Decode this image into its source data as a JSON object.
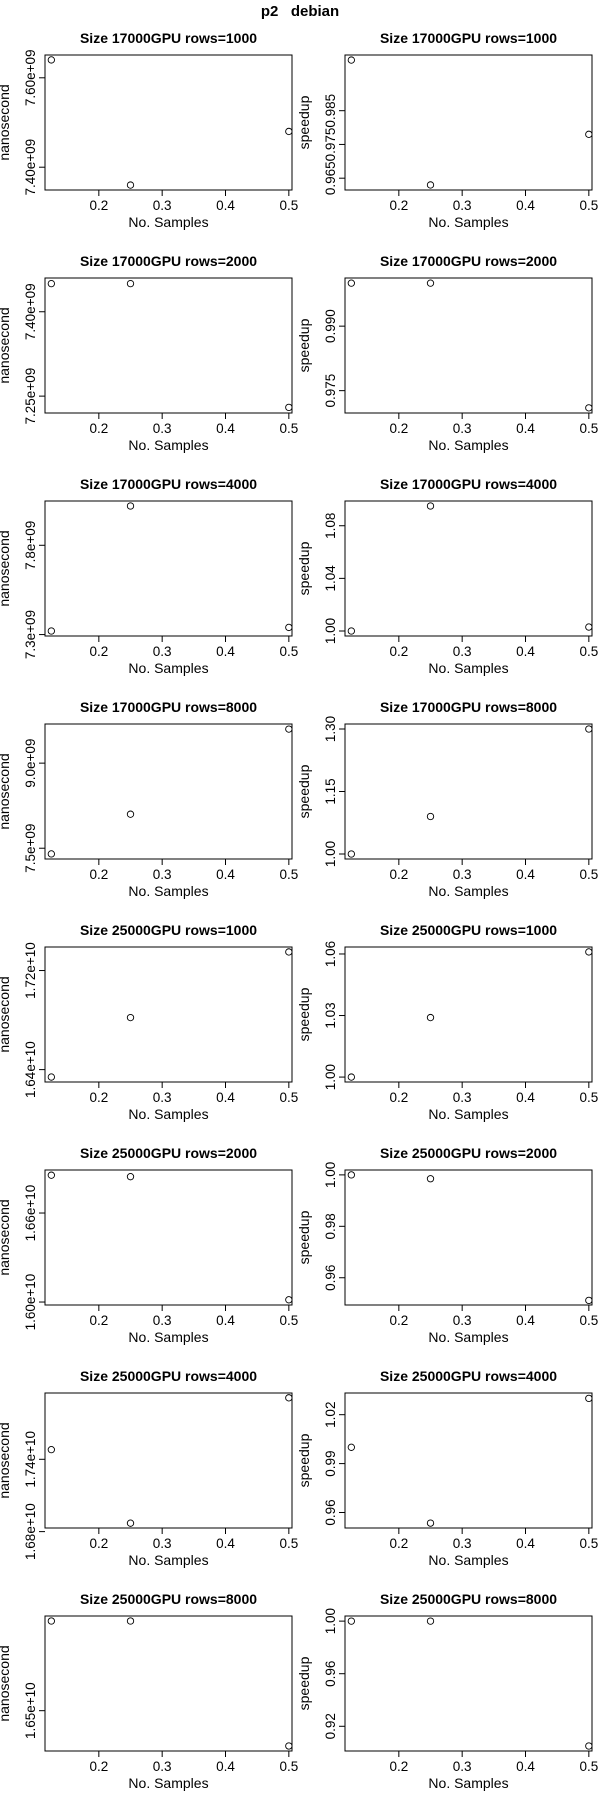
{
  "figure": {
    "title": "p2   debian"
  },
  "chart_data": [
    {
      "type": "scatter",
      "title": "Size 17000GPU rows=1000",
      "xlabel": "No. Samples",
      "ylabel": "nanosecond",
      "x": [
        0.125,
        0.25,
        0.5
      ],
      "y": [
        7640000000.0,
        7360000000.0,
        7480000000.0
      ],
      "xticks": [
        0.2,
        0.3,
        0.4,
        0.5
      ],
      "xtick_labels": [
        "0.2",
        "0.3",
        "0.4",
        "0.5"
      ],
      "yticks": [
        7400000000.0,
        7600000000.0
      ],
      "ytick_labels": [
        "7.40e+09",
        "7.60e+09"
      ],
      "ylim": [
        7349000000.0,
        7651000000.0
      ]
    },
    {
      "type": "scatter",
      "title": "Size 17000GPU rows=1000",
      "xlabel": "No. Samples",
      "ylabel": "speedup",
      "x": [
        0.125,
        0.25,
        0.5
      ],
      "y": [
        1.0,
        0.963,
        0.978
      ],
      "xticks": [
        0.2,
        0.3,
        0.4,
        0.5
      ],
      "xtick_labels": [
        "0.2",
        "0.3",
        "0.4",
        "0.5"
      ],
      "yticks": [
        0.965,
        0.975,
        0.985
      ],
      "ytick_labels": [
        "0.965",
        "0.975",
        "0.985"
      ],
      "ylim": [
        0.9615,
        1.0015
      ]
    },
    {
      "type": "scatter",
      "title": "Size 17000GPU rows=2000",
      "xlabel": "No. Samples",
      "ylabel": "nanosecond",
      "x": [
        0.125,
        0.25,
        0.5
      ],
      "y": [
        7450000000.0,
        7450000000.0,
        7230000000.0
      ],
      "xticks": [
        0.2,
        0.3,
        0.4,
        0.5
      ],
      "xtick_labels": [
        "0.2",
        "0.3",
        "0.4",
        "0.5"
      ],
      "yticks": [
        7250000000.0,
        7400000000.0
      ],
      "ytick_labels": [
        "7.25e+09",
        "7.40e+09"
      ],
      "ylim": [
        7220000000.0,
        7460000000.0
      ]
    },
    {
      "type": "scatter",
      "title": "Size 17000GPU rows=2000",
      "xlabel": "No. Samples",
      "ylabel": "speedup",
      "x": [
        0.125,
        0.25,
        0.5
      ],
      "y": [
        1.0,
        1.0,
        0.971
      ],
      "xticks": [
        0.2,
        0.3,
        0.4,
        0.5
      ],
      "xtick_labels": [
        "0.2",
        "0.3",
        "0.4",
        "0.5"
      ],
      "yticks": [
        0.975,
        0.99
      ],
      "ytick_labels": [
        "0.975",
        "0.990"
      ],
      "ylim": [
        0.9698,
        1.0012
      ]
    },
    {
      "type": "scatter",
      "title": "Size 17000GPU rows=4000",
      "xlabel": "No. Samples",
      "ylabel": "nanosecond",
      "x": [
        0.125,
        0.25,
        0.5
      ],
      "y": [
        7320000000.0,
        8020000000.0,
        7340000000.0
      ],
      "xticks": [
        0.2,
        0.3,
        0.4,
        0.5
      ],
      "xtick_labels": [
        "0.2",
        "0.3",
        "0.4",
        "0.5"
      ],
      "yticks": [
        7300000000.0,
        7800000000.0
      ],
      "ytick_labels": [
        "7.3e+09",
        "7.8e+09"
      ],
      "ylim": [
        7292000000.0,
        8048000000.0
      ]
    },
    {
      "type": "scatter",
      "title": "Size 17000GPU rows=4000",
      "xlabel": "No. Samples",
      "ylabel": "speedup",
      "x": [
        0.125,
        0.25,
        0.5
      ],
      "y": [
        1.0,
        1.095,
        1.003
      ],
      "xticks": [
        0.2,
        0.3,
        0.4,
        0.5
      ],
      "xtick_labels": [
        "0.2",
        "0.3",
        "0.4",
        "0.5"
      ],
      "yticks": [
        1.0,
        1.04,
        1.08
      ],
      "ytick_labels": [
        "1.00",
        "1.04",
        "1.08"
      ],
      "ylim": [
        0.9962,
        1.0988
      ]
    },
    {
      "type": "scatter",
      "title": "Size 17000GPU rows=8000",
      "xlabel": "No. Samples",
      "ylabel": "nanosecond",
      "x": [
        0.125,
        0.25,
        0.5
      ],
      "y": [
        7400000000.0,
        8100000000.0,
        9600000000.0
      ],
      "xticks": [
        0.2,
        0.3,
        0.4,
        0.5
      ],
      "xtick_labels": [
        "0.2",
        "0.3",
        "0.4",
        "0.5"
      ],
      "yticks": [
        7500000000.0,
        9000000000.0
      ],
      "ytick_labels": [
        "7.5e+09",
        "9.0e+09"
      ],
      "ylim": [
        7310000000.0,
        9690000000.0
      ]
    },
    {
      "type": "scatter",
      "title": "Size 17000GPU rows=8000",
      "xlabel": "No. Samples",
      "ylabel": "speedup",
      "x": [
        0.125,
        0.25,
        0.5
      ],
      "y": [
        1.0,
        1.09,
        1.3
      ],
      "xticks": [
        0.2,
        0.3,
        0.4,
        0.5
      ],
      "xtick_labels": [
        "0.2",
        "0.3",
        "0.4",
        "0.5"
      ],
      "yticks": [
        1.0,
        1.15,
        1.3
      ],
      "ytick_labels": [
        "1.00",
        "1.15",
        "1.30"
      ],
      "ylim": [
        0.988,
        1.312
      ]
    },
    {
      "type": "scatter",
      "title": "Size 25000GPU rows=1000",
      "xlabel": "No. Samples",
      "ylabel": "nanosecond",
      "x": [
        0.125,
        0.25,
        0.5
      ],
      "y": [
        16340000000.0,
        16820000000.0,
        17350000000.0
      ],
      "xticks": [
        0.2,
        0.3,
        0.4,
        0.5
      ],
      "xtick_labels": [
        "0.2",
        "0.3",
        "0.4",
        "0.5"
      ],
      "yticks": [
        16400000000.0,
        17200000000.0
      ],
      "ytick_labels": [
        "1.64e+10",
        "1.72e+10"
      ],
      "ylim": [
        16300000000.0,
        17390000000.0
      ]
    },
    {
      "type": "scatter",
      "title": "Size 25000GPU rows=1000",
      "xlabel": "No. Samples",
      "ylabel": "speedup",
      "x": [
        0.125,
        0.25,
        0.5
      ],
      "y": [
        1.0,
        1.029,
        1.061
      ],
      "xticks": [
        0.2,
        0.3,
        0.4,
        0.5
      ],
      "xtick_labels": [
        "0.2",
        "0.3",
        "0.4",
        "0.5"
      ],
      "yticks": [
        1.0,
        1.03,
        1.06
      ],
      "ytick_labels": [
        "1.00",
        "1.03",
        "1.06"
      ],
      "ylim": [
        0.9976,
        1.0634
      ]
    },
    {
      "type": "scatter",
      "title": "Size 25000GPU rows=2000",
      "xlabel": "No. Samples",
      "ylabel": "nanosecond",
      "x": [
        0.125,
        0.25,
        0.5
      ],
      "y": [
        16855000000.0,
        16845000000.0,
        16015000000.0
      ],
      "xticks": [
        0.2,
        0.3,
        0.4,
        0.5
      ],
      "xtick_labels": [
        "0.2",
        "0.3",
        "0.4",
        "0.5"
      ],
      "yticks": [
        16000000000.0,
        16600000000.0
      ],
      "ytick_labels": [
        "1.60e+10",
        "1.66e+10"
      ],
      "ylim": [
        15980000000.0,
        16890000000.0
      ]
    },
    {
      "type": "scatter",
      "title": "Size 25000GPU rows=2000",
      "xlabel": "No. Samples",
      "ylabel": "speedup",
      "x": [
        0.125,
        0.25,
        0.5
      ],
      "y": [
        1.0,
        0.9985,
        0.9512
      ],
      "xticks": [
        0.2,
        0.3,
        0.4,
        0.5
      ],
      "xtick_labels": [
        "0.2",
        "0.3",
        "0.4",
        "0.5"
      ],
      "yticks": [
        0.96,
        0.98,
        1.0
      ],
      "ytick_labels": [
        "0.96",
        "0.98",
        "1.00"
      ],
      "ylim": [
        0.9494,
        1.0019
      ]
    },
    {
      "type": "scatter",
      "title": "Size 25000GPU rows=4000",
      "xlabel": "No. Samples",
      "ylabel": "nanosecond",
      "x": [
        0.125,
        0.25,
        0.5
      ],
      "y": [
        17480000000.0,
        16870000000.0,
        17910000000.0
      ],
      "xticks": [
        0.2,
        0.3,
        0.4,
        0.5
      ],
      "xtick_labels": [
        "0.2",
        "0.3",
        "0.4",
        "0.5"
      ],
      "yticks": [
        16800000000.0,
        17400000000.0
      ],
      "ytick_labels": [
        "1.68e+10",
        "1.74e+10"
      ],
      "ylim": [
        16830000000.0,
        17950000000.0
      ]
    },
    {
      "type": "scatter",
      "title": "Size 25000GPU rows=4000",
      "xlabel": "No. Samples",
      "ylabel": "speedup",
      "x": [
        0.125,
        0.25,
        0.5
      ],
      "y": [
        1.0,
        0.9535,
        1.03
      ],
      "xticks": [
        0.2,
        0.3,
        0.4,
        0.5
      ],
      "xtick_labels": [
        "0.2",
        "0.3",
        "0.4",
        "0.5"
      ],
      "yticks": [
        0.96,
        0.99,
        1.02
      ],
      "ytick_labels": [
        "0.96",
        "0.99",
        "1.02"
      ],
      "ylim": [
        0.9505,
        1.0333
      ]
    },
    {
      "type": "scatter",
      "title": "Size 25000GPU rows=8000",
      "xlabel": "No. Samples",
      "ylabel": "nanosecond",
      "x": [
        0.125,
        0.25,
        0.5
      ],
      "y": [
        17305000000.0,
        17305000000.0,
        16183000000.0
      ],
      "xticks": [
        0.2,
        0.3,
        0.4,
        0.5
      ],
      "xtick_labels": [
        "0.2",
        "0.3",
        "0.4",
        "0.5"
      ],
      "yticks": [
        16500000000.0
      ],
      "ytick_labels": [
        "1.65e+10"
      ],
      "ylim": [
        16138000000.0,
        17350000000.0
      ]
    },
    {
      "type": "scatter",
      "title": "Size 25000GPU rows=8000",
      "xlabel": "No. Samples",
      "ylabel": "speedup",
      "x": [
        0.125,
        0.25,
        0.5
      ],
      "y": [
        1.0,
        1.0,
        0.905
      ],
      "xticks": [
        0.2,
        0.3,
        0.4,
        0.5
      ],
      "xtick_labels": [
        "0.2",
        "0.3",
        "0.4",
        "0.5"
      ],
      "yticks": [
        0.92,
        0.96,
        1.0
      ],
      "ytick_labels": [
        "0.92",
        "0.96",
        "1.00"
      ],
      "ylim": [
        0.9012,
        1.0039
      ]
    }
  ]
}
